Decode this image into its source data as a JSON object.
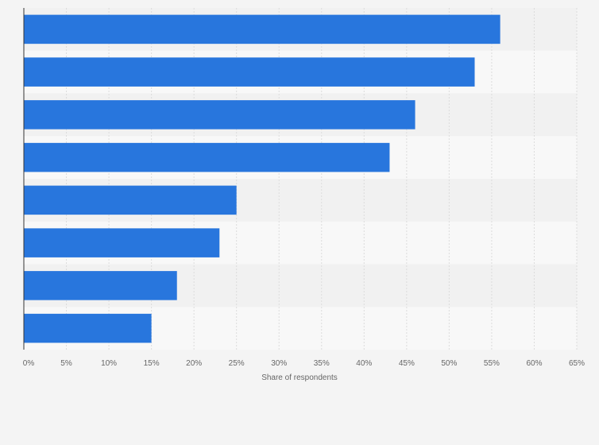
{
  "chart_data": {
    "type": "bar",
    "orientation": "horizontal",
    "categories": [
      "",
      "",
      "",
      "",
      "",
      "",
      "",
      ""
    ],
    "values": [
      56,
      53,
      46,
      43,
      25,
      23,
      18,
      15
    ],
    "xlabel": "Share of respondents",
    "ylabel": "",
    "xlim": [
      0,
      65
    ],
    "x_ticks": [
      "0%",
      "5%",
      "10%",
      "15%",
      "20%",
      "25%",
      "30%",
      "35%",
      "40%",
      "45%",
      "50%",
      "55%",
      "60%",
      "65%"
    ],
    "grid": true,
    "legend": "none",
    "colors": {
      "bar": "#2876dd",
      "band_dark": "#f1f1f1",
      "band_light": "#f8f8f8",
      "grid": "#dcdcdc",
      "axis": "#333333"
    }
  }
}
